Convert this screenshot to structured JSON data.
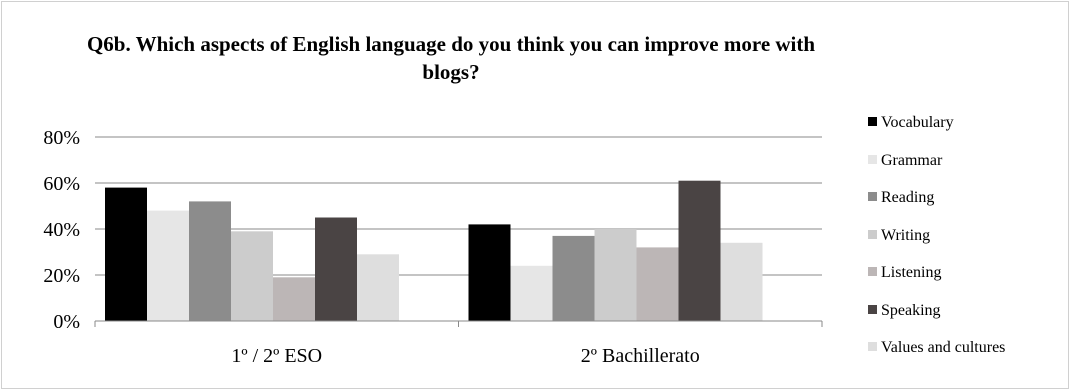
{
  "chart_data": {
    "type": "bar",
    "title": "Q6b. Which aspects of English language do you think you can improve more with blogs?",
    "xlabel": "",
    "ylabel": "",
    "ylim": [
      0,
      0.8
    ],
    "yticks": [
      0,
      0.2,
      0.4,
      0.6,
      0.8
    ],
    "ytick_labels": [
      "0%",
      "20%",
      "40%",
      "60%",
      "80%"
    ],
    "grid": true,
    "legend_position": "right",
    "categories": [
      "1º / 2º ESO",
      "2º Bachillerato"
    ],
    "series": [
      {
        "name": "Vocabulary",
        "color": "#000000",
        "values": [
          0.58,
          0.42
        ]
      },
      {
        "name": "Grammar",
        "color": "#e6e6e6",
        "values": [
          0.48,
          0.24
        ]
      },
      {
        "name": "Reading",
        "color": "#8c8c8c",
        "values": [
          0.52,
          0.37
        ]
      },
      {
        "name": "Writing",
        "color": "#cccccc",
        "values": [
          0.39,
          0.4
        ]
      },
      {
        "name": "Listening",
        "color": "#bcb6b6",
        "values": [
          0.19,
          0.32
        ]
      },
      {
        "name": "Speaking",
        "color": "#4a4444",
        "values": [
          0.45,
          0.61
        ]
      },
      {
        "name": "Values and cultures",
        "color": "#dedede",
        "values": [
          0.29,
          0.34
        ]
      }
    ]
  }
}
